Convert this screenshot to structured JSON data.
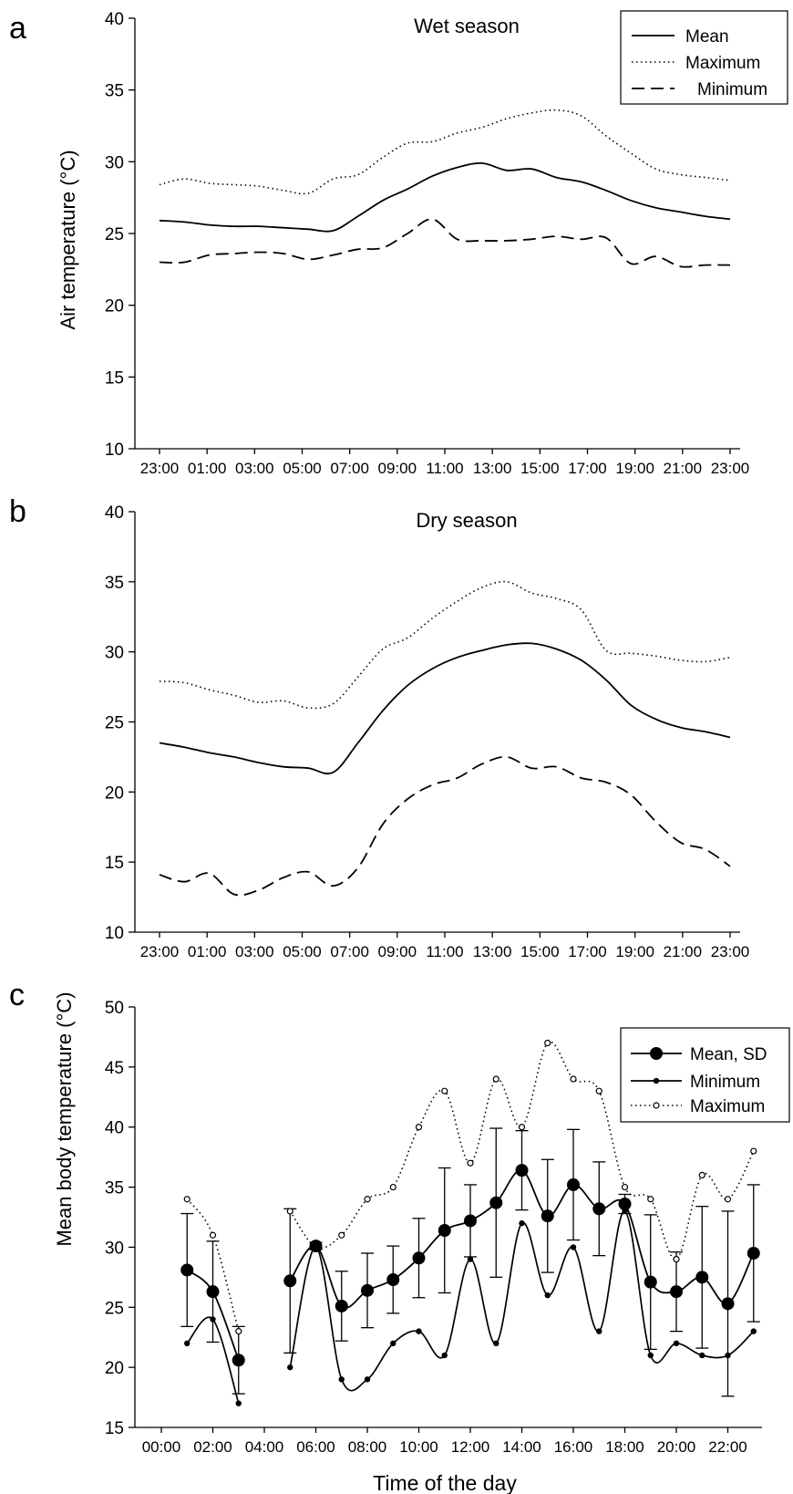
{
  "chart_data": [
    {
      "panel": "a",
      "type": "line",
      "title": "Wet season",
      "ylabel": "Air temperature (°C)",
      "xlabel": "",
      "ylim": [
        10,
        40
      ],
      "yticks": [
        10,
        15,
        20,
        25,
        30,
        35,
        40
      ],
      "x_ticks": [
        "23:00",
        "01:00",
        "03:00",
        "05:00",
        "07:00",
        "09:00",
        "11:00",
        "13:00",
        "15:00",
        "17:00",
        "19:00",
        "21:00",
        "23:00"
      ],
      "legend": "top-right",
      "series": [
        {
          "name": "Mean",
          "style": "solid",
          "values": [
            25.9,
            25.8,
            25.6,
            25.5,
            25.5,
            25.4,
            25.3,
            25.2,
            26.2,
            27.3,
            28.1,
            29.0,
            29.6,
            29.9,
            29.4,
            29.5,
            28.9,
            28.6,
            28.0,
            27.3,
            26.8,
            26.5,
            26.2,
            26.0
          ]
        },
        {
          "name": "Maximum",
          "style": "dotted",
          "values": [
            28.4,
            28.8,
            28.5,
            28.4,
            28.3,
            28.0,
            27.8,
            28.8,
            29.1,
            30.3,
            31.3,
            31.4,
            32.0,
            32.4,
            33.0,
            33.4,
            33.6,
            33.2,
            31.8,
            30.6,
            29.5,
            29.1,
            28.9,
            28.7
          ]
        },
        {
          "name": "Minimum",
          "style": "dashed",
          "values": [
            23.0,
            23.0,
            23.5,
            23.6,
            23.7,
            23.6,
            23.2,
            23.5,
            23.9,
            24.0,
            25.0,
            26.0,
            24.6,
            24.5,
            24.5,
            24.6,
            24.8,
            24.6,
            24.7,
            22.9,
            23.4,
            22.7,
            22.8,
            22.8
          ]
        }
      ]
    },
    {
      "panel": "b",
      "type": "line",
      "title": "Dry season",
      "ylabel": "",
      "xlabel": "",
      "ylim": [
        10,
        40
      ],
      "yticks": [
        10,
        15,
        20,
        25,
        30,
        35,
        40
      ],
      "x_ticks": [
        "23:00",
        "01:00",
        "03:00",
        "05:00",
        "07:00",
        "09:00",
        "11:00",
        "13:00",
        "15:00",
        "17:00",
        "19:00",
        "21:00",
        "23:00"
      ],
      "series": [
        {
          "name": "Mean",
          "style": "solid",
          "values": [
            23.5,
            23.2,
            22.8,
            22.5,
            22.1,
            21.8,
            21.7,
            21.4,
            23.5,
            25.8,
            27.6,
            28.8,
            29.6,
            30.1,
            30.5,
            30.6,
            30.2,
            29.4,
            28.0,
            26.2,
            25.2,
            24.6,
            24.3,
            23.9
          ]
        },
        {
          "name": "Maximum",
          "style": "dotted",
          "values": [
            27.9,
            27.8,
            27.3,
            26.9,
            26.4,
            26.5,
            26.0,
            26.3,
            28.2,
            30.2,
            31.0,
            32.4,
            33.6,
            34.6,
            35.0,
            34.2,
            33.8,
            33.0,
            30.1,
            29.9,
            29.7,
            29.4,
            29.3,
            29.6
          ]
        },
        {
          "name": "Minimum",
          "style": "dashed",
          "values": [
            14.1,
            13.6,
            14.2,
            12.7,
            13.0,
            13.9,
            14.3,
            13.3,
            14.6,
            17.7,
            19.5,
            20.5,
            21.0,
            22.0,
            22.5,
            21.7,
            21.8,
            21.0,
            20.7,
            19.8,
            17.9,
            16.4,
            15.9,
            14.7
          ]
        }
      ]
    },
    {
      "panel": "c",
      "type": "line",
      "title": "",
      "xlabel": "Time of the day",
      "ylabel": "Mean body temperature (°C)",
      "ylim": [
        15,
        50
      ],
      "yticks": [
        15,
        20,
        25,
        30,
        35,
        40,
        45,
        50
      ],
      "x_ticks": [
        "00:00",
        "02:00",
        "04:00",
        "06:00",
        "08:00",
        "10:00",
        "12:00",
        "14:00",
        "16:00",
        "18:00",
        "20:00",
        "22:00"
      ],
      "legend": "top-right",
      "hours": [
        1,
        2,
        3,
        5,
        6,
        7,
        8,
        9,
        10,
        11,
        12,
        13,
        14,
        15,
        16,
        17,
        18,
        19,
        20,
        21,
        22,
        23
      ],
      "series": [
        {
          "name": "Mean, SD",
          "marker": "large-filled-circle",
          "values": [
            28.1,
            26.3,
            20.6,
            27.2,
            30.1,
            25.1,
            26.4,
            27.3,
            29.1,
            31.4,
            32.2,
            33.7,
            36.4,
            32.6,
            35.2,
            33.2,
            33.6,
            27.1,
            26.3,
            27.5,
            25.3,
            29.5
          ],
          "sd": [
            4.7,
            4.2,
            2.8,
            6.0,
            0.3,
            2.9,
            3.1,
            2.8,
            3.3,
            5.2,
            3.0,
            6.2,
            3.3,
            4.7,
            4.6,
            3.9,
            0.8,
            5.6,
            3.3,
            5.9,
            7.7,
            5.7
          ]
        },
        {
          "name": "Minimum",
          "marker": "small-filled-circle",
          "values": [
            22,
            24,
            17,
            20,
            30,
            19,
            19,
            22,
            23,
            21,
            29,
            22,
            32,
            26,
            30,
            23,
            33,
            21,
            22,
            21,
            21,
            23
          ]
        },
        {
          "name": "Maximum",
          "marker": "small-open-circle",
          "style": "dotted",
          "values": [
            34,
            31,
            23,
            33,
            30,
            31,
            34,
            35,
            40,
            43,
            37,
            44,
            40,
            47,
            44,
            43,
            35,
            34,
            29,
            36,
            34,
            38
          ]
        }
      ]
    }
  ],
  "panel_letters": [
    "a",
    "b",
    "c"
  ]
}
